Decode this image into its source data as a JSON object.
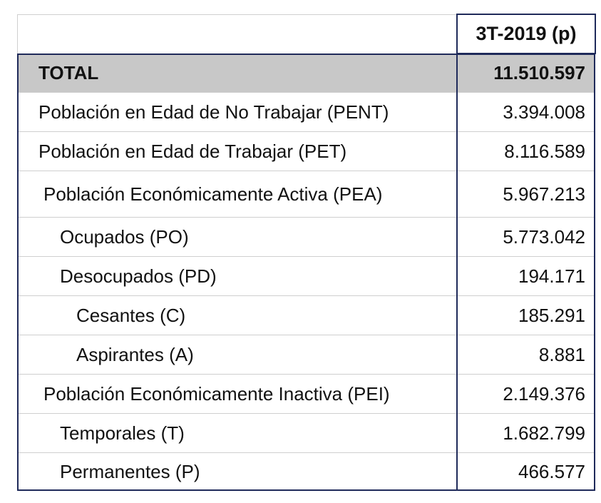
{
  "table": {
    "header": [
      "",
      "3T-2019 (p)"
    ],
    "rows": [
      [
        "TOTAL",
        "11.510.597"
      ],
      [
        "Población en Edad de No Trabajar (PENT)",
        "3.394.008"
      ],
      [
        "Población en Edad de Trabajar (PET)",
        "8.116.589"
      ],
      [
        "Población Económicamente Activa (PEA)",
        "5.967.213"
      ],
      [
        "Ocupados (PO)",
        "5.773.042"
      ],
      [
        "Desocupados (PD)",
        "194.171"
      ],
      [
        "Cesantes (C)",
        "185.291"
      ],
      [
        "Aspirantes (A)",
        "8.881"
      ],
      [
        "Población Económicamente Inactiva (PEI)",
        "2.149.376"
      ],
      [
        "Temporales (T)",
        "1.682.799"
      ],
      [
        "Permanentes (P)",
        "466.577"
      ]
    ]
  }
}
